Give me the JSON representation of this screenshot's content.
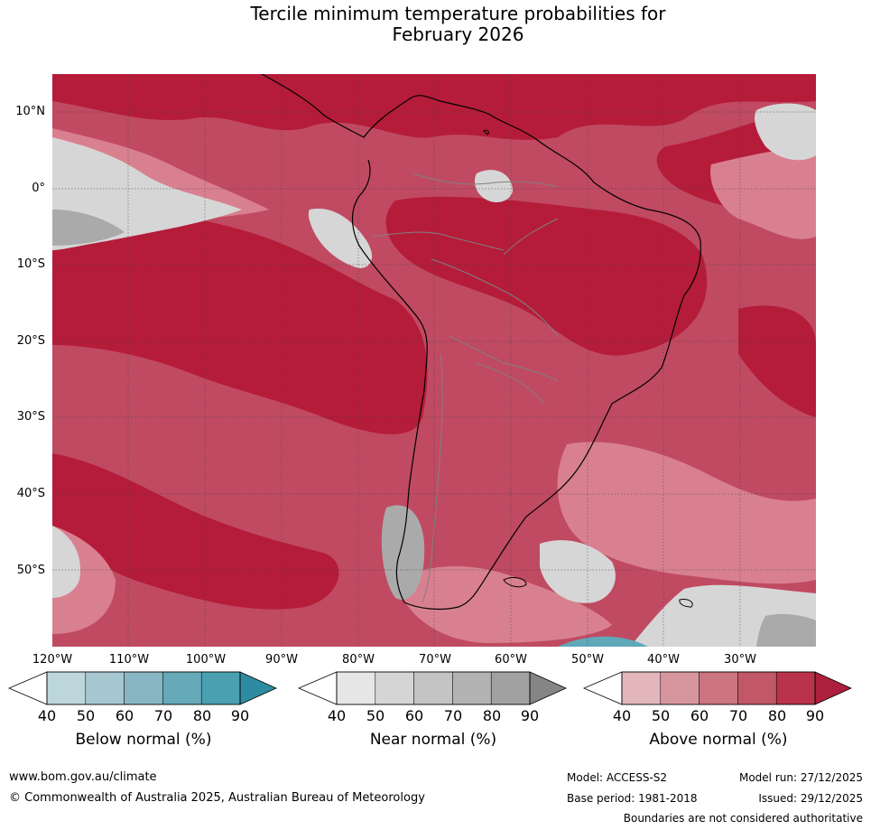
{
  "title": {
    "line1": "Tercile minimum temperature probabilities for",
    "line2": "February 2026"
  },
  "map": {
    "region": "South America",
    "latitude_labels": [
      "10°N",
      "0°",
      "10°S",
      "20°S",
      "30°S",
      "40°S",
      "50°S"
    ],
    "longitude_labels": [
      "120°W",
      "110°W",
      "100°W",
      "90°W",
      "80°W",
      "70°W",
      "60°W",
      "50°W",
      "40°W",
      "30°W"
    ]
  },
  "colorbars": [
    {
      "label": "Below normal (%)",
      "ticks": [
        "40",
        "50",
        "60",
        "70",
        "80",
        "90"
      ],
      "colors": [
        "#bcd6dc",
        "#a6c7cf",
        "#88b7c3",
        "#66a9b8",
        "#4a9fb0",
        "#2e8ca2"
      ]
    },
    {
      "label": "Near normal (%)",
      "ticks": [
        "40",
        "50",
        "60",
        "70",
        "80",
        "90"
      ],
      "colors": [
        "#e6e6e6",
        "#d5d5d5",
        "#c4c4c4",
        "#b3b3b3",
        "#a1a1a1",
        "#858585"
      ]
    },
    {
      "label": "Above normal (%)",
      "ticks": [
        "40",
        "50",
        "60",
        "70",
        "80",
        "90"
      ],
      "colors": [
        "#e2b6bb",
        "#d7969e",
        "#cc7480",
        "#c25768",
        "#b9344a",
        "#ad1f3c"
      ]
    }
  ],
  "colors": {
    "above_dark": "#b51c3a",
    "above_mid": "#c8506a",
    "above_light": "#d98090",
    "near_light": "#d8d8d8",
    "near_mid": "#b8b8b8",
    "below": "#5fa8b8"
  },
  "footer": {
    "website": "www.bom.gov.au/climate",
    "copyright": "© Commonwealth of Australia 2025, Australian Bureau of Meteorology",
    "model": "Model: ACCESS-S2",
    "model_run": "Model run: 27/12/2025",
    "base_period": "Base period: 1981-2018",
    "issued": "Issued: 29/12/2025",
    "disclaimer": "Boundaries are not considered authoritative"
  }
}
